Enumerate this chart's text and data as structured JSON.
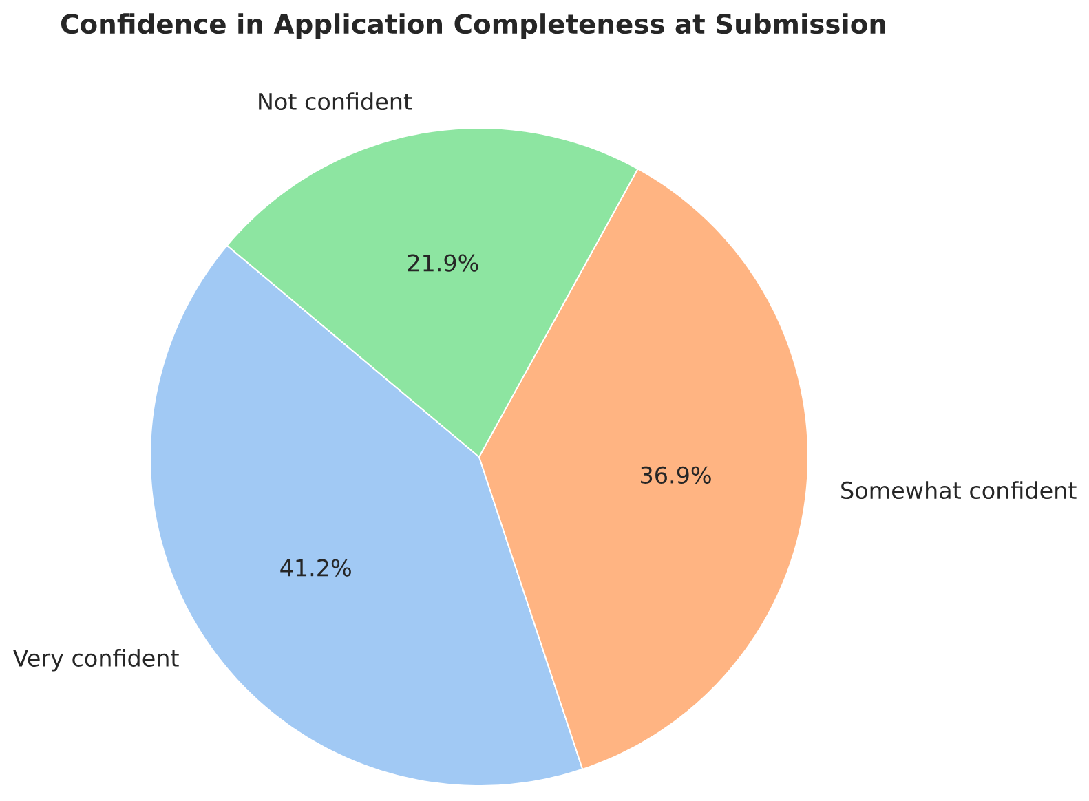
{
  "chart_data": {
    "type": "pie",
    "title": "Confidence in Application Completeness at Submission",
    "categories": [
      "Very confident",
      "Somewhat confident",
      "Not confident"
    ],
    "values": [
      41.2,
      36.9,
      21.9
    ],
    "colors": [
      "#a1c9f4",
      "#ffb482",
      "#8de5a1"
    ],
    "value_labels": [
      "41.2%",
      "36.9%",
      "21.9%"
    ]
  }
}
